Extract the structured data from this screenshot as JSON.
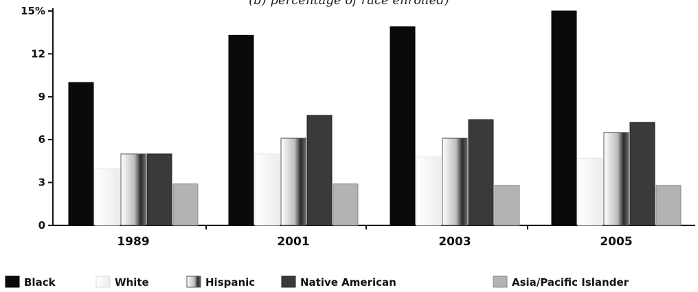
{
  "chart_data": {
    "type": "bar",
    "title": "(b) percentage of race enrolled)",
    "categories": [
      "1989",
      "2001",
      "2003",
      "2005"
    ],
    "series": [
      {
        "name": "Black",
        "values": [
          10.0,
          13.3,
          13.9,
          15.0
        ],
        "color": "#0a0a0a"
      },
      {
        "name": "White",
        "values": [
          4.0,
          5.0,
          4.8,
          4.7
        ],
        "color": "#ffffff"
      },
      {
        "name": "Hispanic",
        "values": [
          5.0,
          6.1,
          6.1,
          6.5
        ],
        "color": "#9a9a9a"
      },
      {
        "name": "Native American",
        "values": [
          5.0,
          7.7,
          7.4,
          7.2
        ],
        "color": "#3a3a3a"
      },
      {
        "name": "Asia/Pacific Islander",
        "values": [
          2.9,
          2.9,
          2.8,
          2.8
        ],
        "color": "#b3b3b3"
      }
    ],
    "yticks": [
      "0",
      "3",
      "6",
      "9",
      "12",
      "15%"
    ],
    "ytick_values": [
      0,
      3,
      6,
      9,
      12,
      15
    ],
    "ylim": [
      0,
      15
    ],
    "grid": false,
    "legend_position": "bottom"
  }
}
